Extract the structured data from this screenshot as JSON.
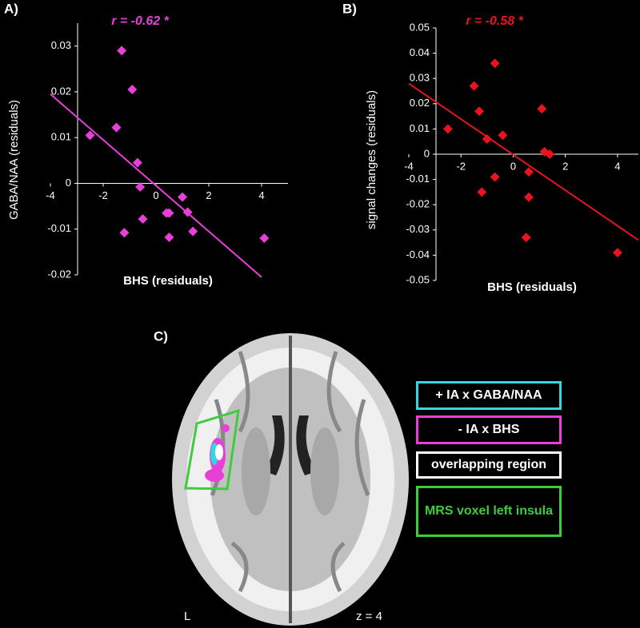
{
  "chart_data": [
    {
      "type": "scatter",
      "panel_label": "A)",
      "annotation": "r = -0.62 *",
      "x_label": "BHS (residuals)",
      "y_label": "GABA/NAA (residuals)",
      "color": "#e93fd9",
      "xlim": [
        -4,
        5
      ],
      "ylim": [
        -0.02,
        0.035
      ],
      "xticks": [
        -4,
        -2,
        0,
        2,
        4
      ],
      "yticks": [
        -0.02,
        -0.01,
        0,
        0.01,
        0.02,
        0.03
      ],
      "x": [
        -2.5,
        -1.3,
        -1.5,
        -0.9,
        -1.2,
        -0.7,
        -0.6,
        -0.5,
        0.4,
        0.5,
        0.5,
        1.0,
        1.2,
        1.4,
        4.1
      ],
      "values": [
        0.0105,
        0.029,
        0.0122,
        0.0205,
        -0.0108,
        0.0045,
        -0.0008,
        -0.0078,
        -0.0065,
        -0.0065,
        -0.0118,
        -0.003,
        -0.0063,
        -0.0105,
        -0.012
      ],
      "trend_line": {
        "x": [
          -4,
          4
        ],
        "values": [
          0.0195,
          -0.0205
        ]
      }
    },
    {
      "type": "scatter",
      "panel_label": "B)",
      "annotation": "r = -0.58 *",
      "x_label": "BHS (residuals)",
      "y_label": "signal changes (residuals)",
      "color": "#e8141c",
      "xlim": [
        -4,
        4.8
      ],
      "ylim": [
        -0.05,
        0.05
      ],
      "xticks": [
        -4,
        -2,
        0,
        2,
        4
      ],
      "yticks": [
        -0.05,
        -0.04,
        -0.03,
        -0.02,
        -0.01,
        0,
        0.01,
        0.02,
        0.03,
        0.04,
        0.05
      ],
      "x": [
        -2.5,
        -1.5,
        -1.3,
        -0.7,
        -1.0,
        -0.4,
        -1.2,
        -0.7,
        0.6,
        0.6,
        0.5,
        1.1,
        1.2,
        1.4,
        4.0
      ],
      "values": [
        0.01,
        0.027,
        0.017,
        0.036,
        0.006,
        0.0075,
        -0.015,
        -0.009,
        -0.007,
        -0.017,
        -0.033,
        0.018,
        0.001,
        0,
        -0.039
      ],
      "trend_line": {
        "x": [
          -4,
          4.8
        ],
        "values": [
          0.028,
          -0.034
        ]
      }
    }
  ],
  "panel_c": {
    "label": "C)",
    "side_label": "L",
    "slice_label": "z = 4",
    "legend": [
      {
        "text": "+ IA x GABA/NAA",
        "color": "#35d6dc"
      },
      {
        "text": "- IA x BHS",
        "color": "#e93fd9"
      },
      {
        "text": "overlapping region",
        "color": "#ffffff"
      },
      {
        "text": "MRS voxel left insula",
        "color": "#3ccc3c"
      }
    ]
  }
}
